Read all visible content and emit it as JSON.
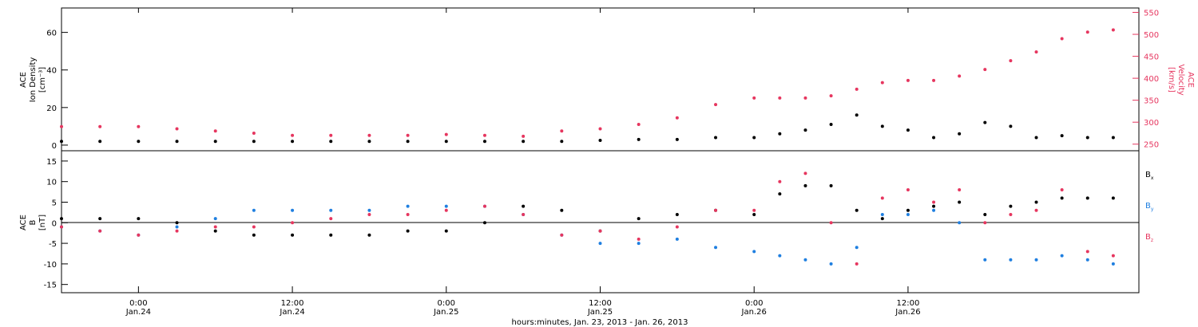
{
  "colors": {
    "axes": "#000000",
    "bx": "#000000",
    "by": "#1f7fe0",
    "bz": "#e6365f",
    "velocity": "#e6365f",
    "density": "#000000"
  },
  "chart_data": [
    {
      "type": "scatter",
      "panel": "plasma",
      "ylabel_left": [
        "ACE",
        "Ion Density",
        "[cm⁻³]"
      ],
      "ylabel_right": [
        "ACE",
        "Velocity",
        "[km/s]"
      ],
      "ylim_left": [
        -3,
        73
      ],
      "ylim_right": [
        235,
        560
      ],
      "left_ticks": [
        0,
        20,
        40,
        60
      ],
      "right_ticks": [
        250,
        300,
        350,
        400,
        450,
        500,
        550
      ],
      "x_range_hours": [
        0,
        84
      ],
      "series": [
        {
          "axis": "left",
          "color": "#000000",
          "x": [
            0,
            3,
            6,
            9,
            12,
            15,
            18,
            21,
            24,
            27,
            30,
            33,
            36,
            39,
            42,
            45,
            48,
            51,
            54,
            56,
            58,
            60,
            62,
            64,
            66,
            68,
            70,
            72,
            74,
            76,
            78,
            80,
            82
          ],
          "y": [
            2,
            2,
            2,
            2,
            2,
            2,
            2,
            2,
            2,
            2,
            2,
            2,
            2,
            2,
            2.5,
            3,
            3,
            4,
            4,
            6,
            8,
            11,
            16,
            10,
            8,
            4,
            6,
            12,
            10,
            4,
            5,
            4,
            4
          ]
        },
        {
          "axis": "right",
          "color": "#e6365f",
          "x": [
            0,
            3,
            6,
            9,
            12,
            15,
            18,
            21,
            24,
            27,
            30,
            33,
            36,
            39,
            42,
            45,
            48,
            51,
            54,
            56,
            58,
            60,
            62,
            64,
            66,
            68,
            70,
            72,
            74,
            76,
            78,
            80,
            82
          ],
          "y": [
            290,
            290,
            290,
            285,
            280,
            275,
            270,
            270,
            270,
            270,
            272,
            270,
            268,
            280,
            285,
            295,
            310,
            340,
            355,
            355,
            355,
            360,
            375,
            390,
            395,
            395,
            405,
            420,
            440,
            460,
            490,
            505,
            510
          ]
        }
      ]
    },
    {
      "type": "scatter",
      "panel": "magnetic",
      "ylabel": [
        "ACE",
        "B",
        "[nT]"
      ],
      "ylim": [
        -17,
        17.5
      ],
      "y_ticks": [
        -15,
        -10,
        -5,
        0,
        5,
        10,
        15
      ],
      "x_range_hours": [
        0,
        84
      ],
      "series": [
        {
          "name": "Bx",
          "color": "#000000",
          "x": [
            0,
            3,
            6,
            9,
            12,
            15,
            18,
            21,
            24,
            27,
            30,
            33,
            36,
            39,
            42,
            45,
            48,
            51,
            54,
            56,
            58,
            60,
            62,
            64,
            66,
            68,
            70,
            72,
            74,
            76,
            78,
            80,
            82
          ],
          "y": [
            1,
            1,
            1,
            0,
            -2,
            -3,
            -3,
            -3,
            -3,
            -2,
            -2,
            0,
            4,
            3,
            -2,
            1,
            2,
            3,
            2,
            7,
            9,
            9,
            3,
            1,
            3,
            4,
            5,
            2,
            4,
            5,
            6,
            6,
            6
          ]
        },
        {
          "name": "By",
          "color": "#1f7fe0",
          "x": [
            0,
            3,
            6,
            9,
            12,
            15,
            18,
            21,
            24,
            27,
            30,
            33,
            36,
            39,
            42,
            45,
            48,
            51,
            54,
            56,
            58,
            60,
            62,
            64,
            66,
            68,
            70,
            72,
            74,
            76,
            78,
            80,
            82
          ],
          "y": [
            -1,
            -2,
            -3,
            -1,
            1,
            3,
            3,
            3,
            3,
            4,
            4,
            4,
            2,
            -3,
            -5,
            -5,
            -4,
            -6,
            -7,
            -8,
            -9,
            -10,
            -6,
            2,
            2,
            3,
            0,
            -9,
            -9,
            -9,
            -8,
            -9,
            -10
          ]
        },
        {
          "name": "Bz",
          "color": "#e6365f",
          "x": [
            0,
            3,
            6,
            9,
            12,
            15,
            18,
            21,
            24,
            27,
            30,
            33,
            36,
            39,
            42,
            45,
            48,
            51,
            54,
            56,
            58,
            60,
            62,
            64,
            66,
            68,
            70,
            72,
            74,
            76,
            78,
            80,
            82
          ],
          "y": [
            -1,
            -2,
            -3,
            -2,
            -1,
            -1,
            0,
            1,
            2,
            2,
            3,
            4,
            2,
            -3,
            -2,
            -4,
            -1,
            3,
            3,
            10,
            12,
            0,
            -10,
            6,
            8,
            5,
            8,
            0,
            2,
            3,
            8,
            -7,
            -8
          ]
        }
      ]
    }
  ],
  "legend": {
    "bx": "B",
    "bx_sub": "x",
    "by": "B",
    "by_sub": "y",
    "bz": "B",
    "bz_sub": "z"
  },
  "x_ticks": [
    {
      "hours": 6,
      "label": "0:00",
      "date": "Jan.24"
    },
    {
      "hours": 18,
      "label": "12:00",
      "date": "Jan.24"
    },
    {
      "hours": 30,
      "label": "0:00",
      "date": "Jan.25"
    },
    {
      "hours": 42,
      "label": "12:00",
      "date": "Jan.25"
    },
    {
      "hours": 54,
      "label": "0:00",
      "date": "Jan.26"
    },
    {
      "hours": 66,
      "label": "12:00",
      "date": "Jan.26"
    }
  ],
  "xlabel": "hours:minutes, Jan. 23, 2013 - Jan. 26, 2013"
}
